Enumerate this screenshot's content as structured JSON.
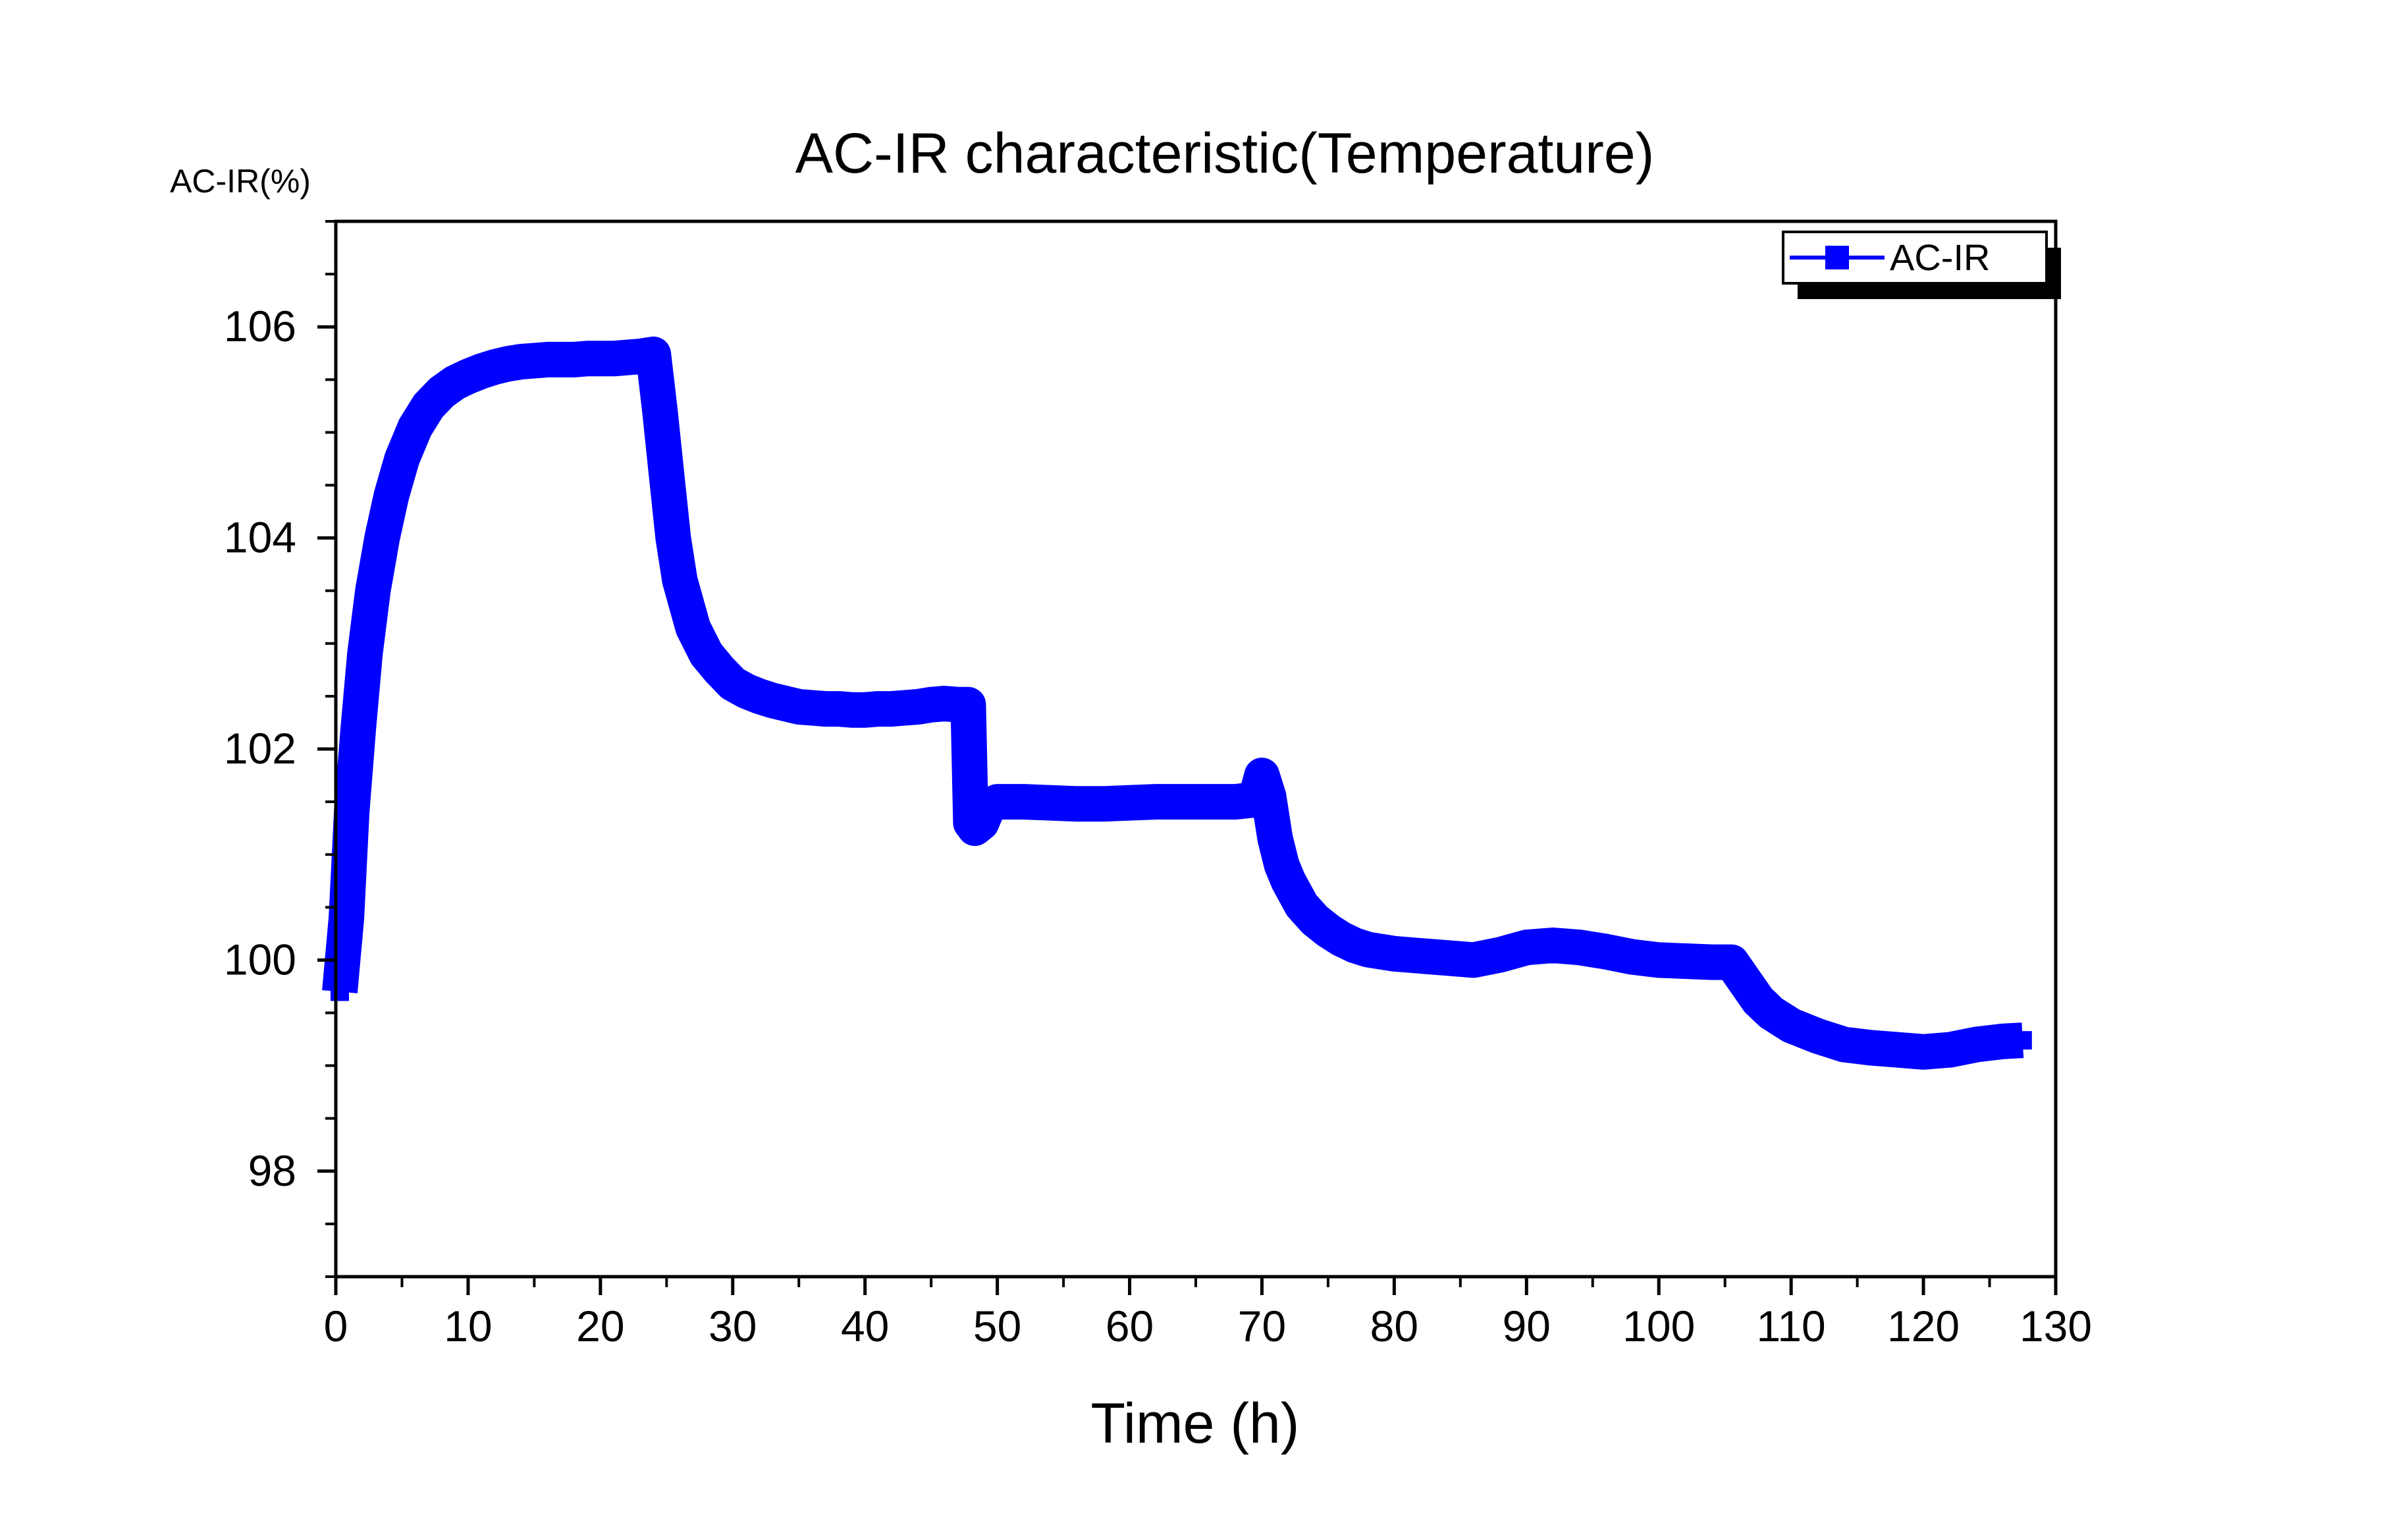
{
  "chart_data": {
    "type": "line",
    "title": "AC-IR characteristic(Temperature)",
    "xlabel": "Time (h)",
    "ylabel": "AC-IR(%)",
    "xlim": [
      0,
      130
    ],
    "ylim": [
      97,
      107
    ],
    "x_ticks": [
      0,
      10,
      20,
      30,
      40,
      50,
      60,
      70,
      80,
      90,
      100,
      110,
      120,
      130
    ],
    "y_ticks": [
      98,
      100,
      102,
      104,
      106
    ],
    "grid": false,
    "legend_position": "top-right",
    "series": [
      {
        "name": "AC-IR",
        "color": "#0000ff",
        "marker": "square",
        "x": [
          0.3,
          0.8,
          1.2,
          1.7,
          2.2,
          2.8,
          3.5,
          4.2,
          5,
          6,
          7,
          8,
          9,
          10,
          11,
          12,
          13,
          14,
          15,
          16,
          17,
          18,
          19,
          20,
          21,
          22,
          23,
          24,
          24.5,
          25,
          25.5,
          26,
          27,
          28,
          29,
          30,
          31,
          32,
          33,
          34,
          35,
          36,
          37,
          38,
          39,
          40,
          41,
          42,
          43,
          44,
          45,
          46,
          47,
          47.8,
          48,
          48.3,
          48.8,
          49.3,
          50,
          51,
          52,
          54,
          56,
          58,
          60,
          62,
          64,
          66,
          68,
          69.5,
          70,
          70.5,
          71,
          71.5,
          72,
          73,
          74,
          75,
          76,
          77,
          78,
          80,
          82,
          84,
          86,
          88,
          90,
          92,
          94,
          96,
          98,
          100,
          102,
          104,
          105.5,
          106.5,
          107.5,
          108.5,
          110,
          112,
          114,
          116,
          118,
          120,
          122,
          124,
          126,
          127.5
        ],
        "y": [
          99.7,
          100.4,
          101.4,
          102.2,
          102.9,
          103.5,
          104.0,
          104.4,
          104.75,
          105.05,
          105.25,
          105.38,
          105.47,
          105.53,
          105.58,
          105.62,
          105.65,
          105.67,
          105.68,
          105.69,
          105.69,
          105.69,
          105.7,
          105.7,
          105.7,
          105.71,
          105.72,
          105.74,
          105.2,
          104.6,
          104.0,
          103.6,
          103.15,
          102.9,
          102.75,
          102.62,
          102.55,
          102.5,
          102.46,
          102.43,
          102.4,
          102.39,
          102.38,
          102.38,
          102.37,
          102.37,
          102.38,
          102.38,
          102.39,
          102.4,
          102.42,
          102.43,
          102.42,
          102.42,
          101.3,
          101.25,
          101.3,
          101.45,
          101.5,
          101.5,
          101.5,
          101.49,
          101.48,
          101.48,
          101.49,
          101.5,
          101.5,
          101.5,
          101.5,
          101.52,
          101.75,
          101.55,
          101.15,
          100.9,
          100.75,
          100.52,
          100.38,
          100.28,
          100.2,
          100.14,
          100.1,
          100.06,
          100.04,
          100.02,
          100.0,
          100.05,
          100.12,
          100.14,
          100.12,
          100.08,
          100.03,
          100.0,
          99.99,
          99.98,
          99.98,
          99.8,
          99.62,
          99.5,
          99.38,
          99.28,
          99.2,
          99.17,
          99.15,
          99.13,
          99.15,
          99.2,
          99.23,
          99.24
        ]
      }
    ]
  }
}
